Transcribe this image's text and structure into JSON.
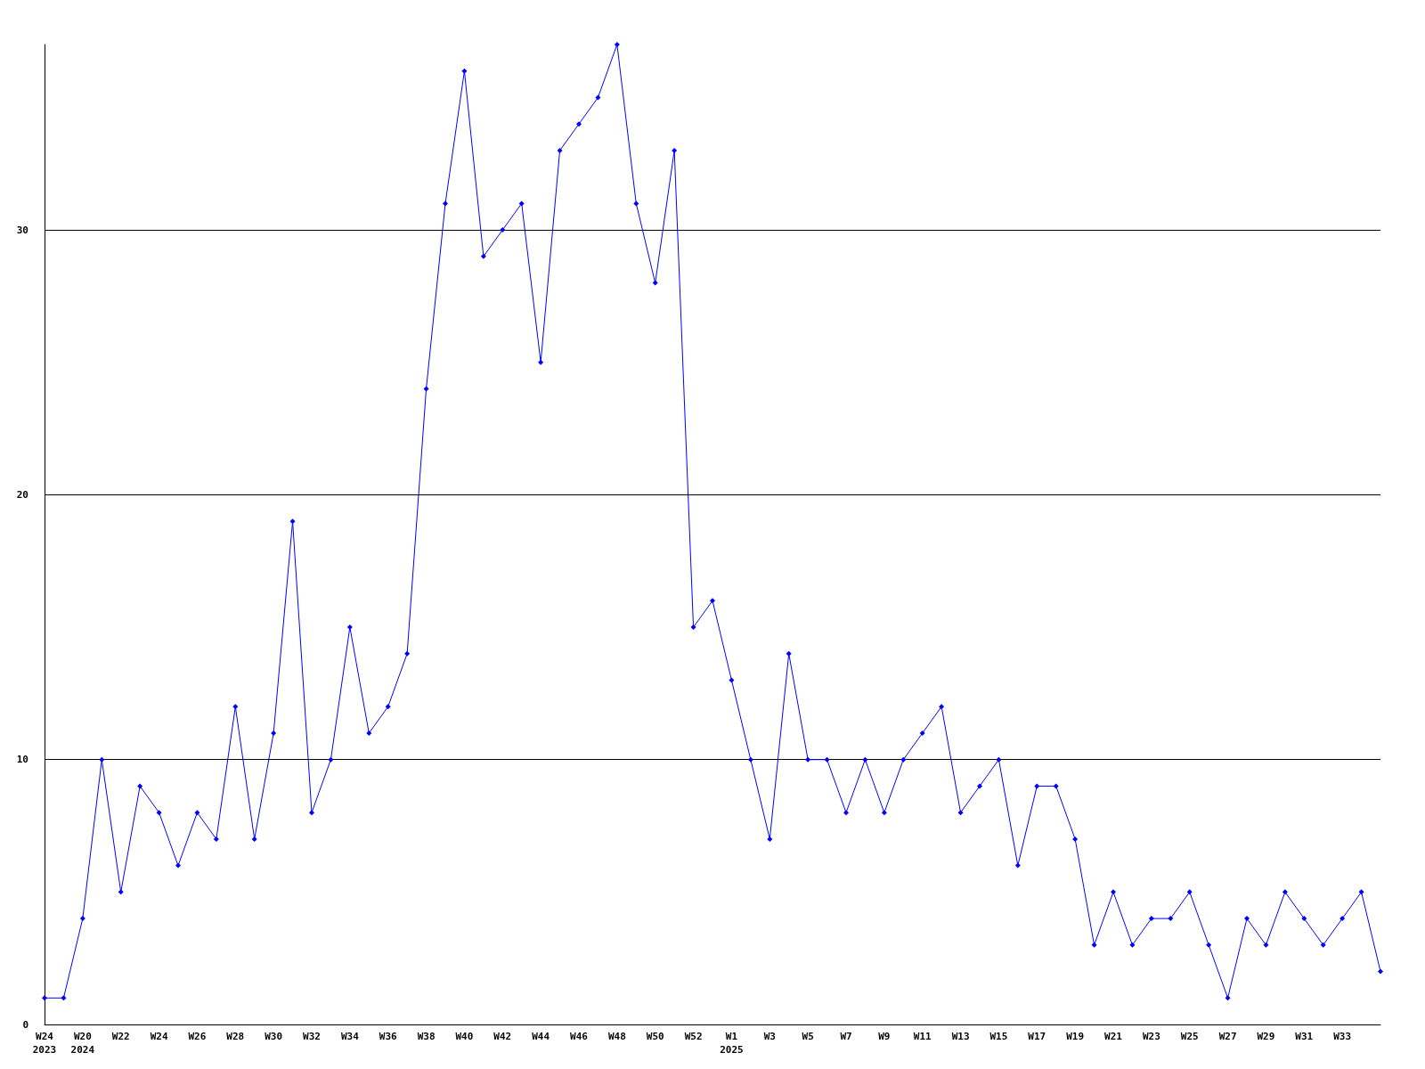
{
  "chart_data": {
    "type": "line",
    "categories": [
      "W24\n2023",
      null,
      "W20\n2024",
      null,
      "W22",
      null,
      "W24",
      null,
      "W26",
      null,
      "W28",
      null,
      "W30",
      null,
      "W32",
      null,
      "W34",
      null,
      "W36",
      null,
      "W38",
      null,
      "W40",
      null,
      "W42",
      null,
      "W44",
      null,
      "W46",
      null,
      "W48",
      null,
      "W50",
      null,
      "W52",
      null,
      "W1\n2025",
      null,
      "W3",
      null,
      "W5",
      null,
      "W7",
      null,
      "W9",
      null,
      "W11",
      null,
      "W13",
      null,
      "W15",
      null,
      "W17",
      null,
      "W19",
      null,
      "W21",
      null,
      "W23",
      null,
      "W25",
      null,
      "W27",
      null,
      "W29",
      null,
      "W31",
      null,
      "W33",
      null,
      null
    ],
    "series": [
      {
        "color": "#0000ff",
        "values": [
          1,
          1,
          4,
          10,
          5,
          9,
          8,
          6,
          8,
          7,
          12,
          7,
          11,
          19,
          8,
          10,
          15,
          11,
          12,
          14,
          24,
          31,
          36,
          29,
          30,
          31,
          25,
          33,
          34,
          35,
          37,
          31,
          28,
          33,
          15,
          16,
          13,
          10,
          7,
          14,
          10,
          10,
          8,
          10,
          8,
          10,
          11,
          12,
          8,
          9,
          10,
          6,
          9,
          9,
          7,
          3,
          5,
          3,
          4,
          4,
          5,
          3,
          1,
          4,
          3,
          5,
          4,
          3,
          4,
          5,
          2
        ]
      }
    ],
    "ylim": [
      0,
      37
    ],
    "yticks": [
      0,
      10,
      20,
      30
    ],
    "grid": "y",
    "marker": "diamond",
    "line_style": "solid"
  }
}
